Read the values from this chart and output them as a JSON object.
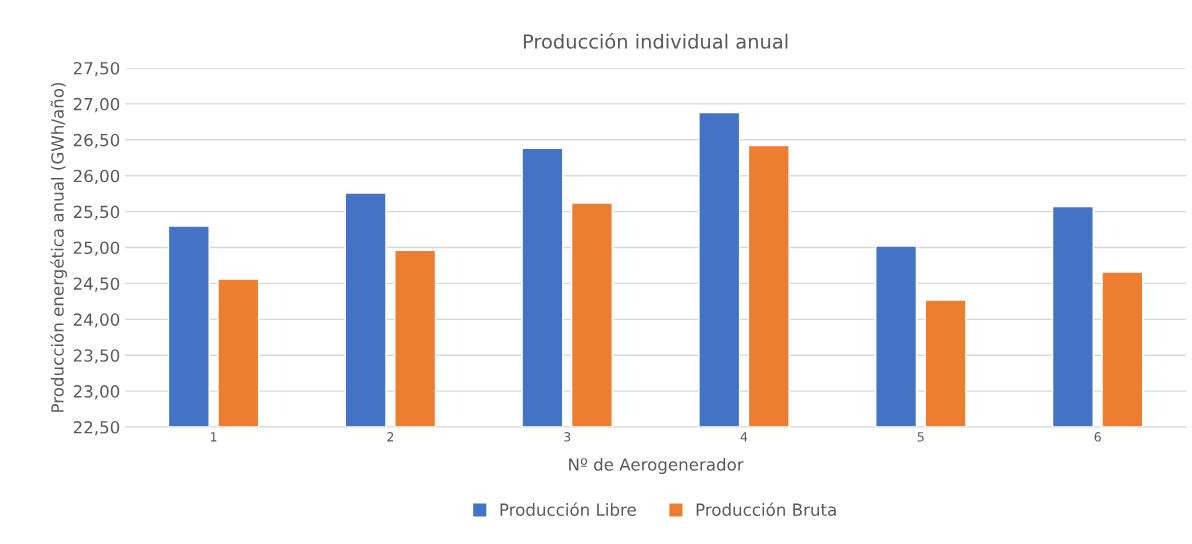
{
  "chart_data": {
    "type": "bar",
    "title": "Producción individual anual",
    "xlabel": "Nº de Aerogenerador",
    "ylabel": "Producción energética anual (GWh/año)",
    "categories": [
      "1",
      "2",
      "3",
      "4",
      "5",
      "6"
    ],
    "series": [
      {
        "name": "Producción Libre",
        "color": "#4472c4",
        "values": [
          25.3,
          25.76,
          26.38,
          26.88,
          25.02,
          25.57
        ]
      },
      {
        "name": "Producción Bruta",
        "color": "#ed7d31",
        "values": [
          24.56,
          24.96,
          25.62,
          26.42,
          24.27,
          24.66
        ]
      }
    ],
    "ylim": [
      22.5,
      27.5
    ],
    "yticks": [
      {
        "value": 22.5,
        "label": "22,50"
      },
      {
        "value": 23,
        "label": "23,00"
      },
      {
        "value": 23.5,
        "label": "23,50"
      },
      {
        "value": 24,
        "label": "24,00"
      },
      {
        "value": 24.5,
        "label": "24,50"
      },
      {
        "value": 25,
        "label": "25,00"
      },
      {
        "value": 25.5,
        "label": "25,50"
      },
      {
        "value": 26,
        "label": "26,00"
      },
      {
        "value": 26.5,
        "label": "26,50"
      },
      {
        "value": 27,
        "label": "27,00"
      },
      {
        "value": 27.5,
        "label": "27,50"
      }
    ],
    "grid": "y",
    "legend": "bottom"
  }
}
